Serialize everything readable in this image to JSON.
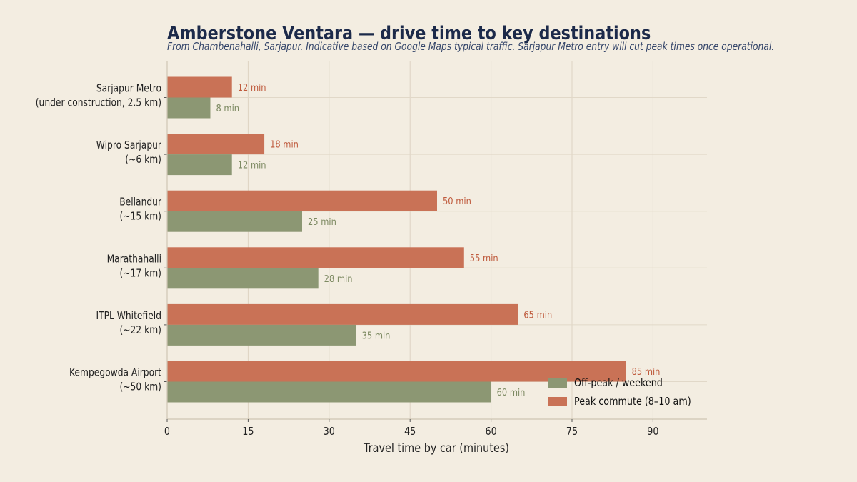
{
  "chart_data": {
    "type": "bar",
    "orientation": "horizontal",
    "title": "Amberstone Ventara — drive time to key destinations",
    "subtitle": "From Chambenahalli, Sarjapur. Indicative based on Google Maps typical traffic. Sarjapur Metro entry will cut peak times once operational.",
    "xlabel": "Travel time by car (minutes)",
    "ylabel": "",
    "xlim": [
      0,
      100
    ],
    "xticks": [
      0,
      15,
      30,
      45,
      60,
      75,
      90
    ],
    "grid": true,
    "legend_position": "bottom-right",
    "value_suffix": " min",
    "categories": [
      [
        "Sarjapur Metro",
        "(under construction, 2.5 km)"
      ],
      [
        "Wipro Sarjapur",
        "(~6 km)"
      ],
      [
        "Bellandur",
        "(~15 km)"
      ],
      [
        "Marathahalli",
        "(~17 km)"
      ],
      [
        "ITPL Whitefield",
        "(~22 km)"
      ],
      [
        "Kempegowda Airport",
        "(~50 km)"
      ]
    ],
    "series": [
      {
        "name": "Off-peak / weekend",
        "color": "#8c9773",
        "label_color": "#7d8a62",
        "values": [
          8,
          12,
          25,
          28,
          35,
          60
        ]
      },
      {
        "name": "Peak commute (8–10 am)",
        "color": "#c97256",
        "label_color": "#bf5a3c",
        "values": [
          12,
          18,
          50,
          55,
          65,
          85
        ]
      }
    ]
  }
}
